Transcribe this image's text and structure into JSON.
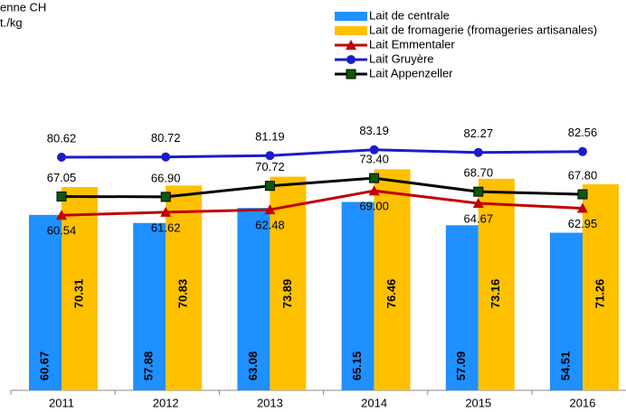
{
  "chart_data": {
    "type": "bar",
    "title_fragments": [
      "enne CH",
      "t./kg"
    ],
    "categories": [
      "2011",
      "2012",
      "2013",
      "2014",
      "2015",
      "2016"
    ],
    "ylim": [
      0,
      100
    ],
    "series": [
      {
        "name": "Lait de centrale",
        "type": "bar",
        "color": "#1e90ff",
        "values": [
          60.67,
          57.88,
          63.08,
          65.15,
          57.09,
          54.51
        ],
        "value_labels": [
          "60.67",
          "57.88",
          "63.08",
          "65.15",
          "57.09",
          "54.51"
        ]
      },
      {
        "name": "Lait de fromagerie (fromageries artisanales)",
        "type": "bar",
        "color": "#ffc000",
        "values": [
          70.31,
          70.83,
          73.89,
          76.46,
          73.16,
          71.26
        ],
        "value_labels": [
          "70.31",
          "70.83",
          "73.89",
          "76.46",
          "73.16",
          "71.26"
        ]
      },
      {
        "name": "Lait Emmentaler",
        "type": "line",
        "marker": "triangle",
        "color": "#c00000",
        "marker_color": "#c00000",
        "label_side": "below",
        "values": [
          60.54,
          61.62,
          62.48,
          69.0,
          64.67,
          62.95
        ],
        "value_labels": [
          "60.54",
          "61.62",
          "62.48",
          "69.00",
          "64.67",
          "62.95"
        ]
      },
      {
        "name": "Lait Gruyère",
        "type": "line",
        "marker": "circle",
        "color": "#1c1cc8",
        "marker_color": "#1c1cc8",
        "label_side": "above",
        "values": [
          80.62,
          80.72,
          81.19,
          83.19,
          82.27,
          82.56
        ],
        "value_labels": [
          "80.62",
          "80.72",
          "81.19",
          "83.19",
          "82.27",
          "82.56"
        ]
      },
      {
        "name": "Lait Appenzeller",
        "type": "line",
        "marker": "square",
        "color": "#000000",
        "marker_color": "#0a5a0a",
        "label_side": "above",
        "values": [
          67.05,
          66.9,
          70.72,
          73.4,
          68.7,
          67.8
        ],
        "value_labels": [
          "67.05",
          "66.90",
          "70.72",
          "73.40",
          "68.70",
          "67.80"
        ]
      }
    ]
  }
}
